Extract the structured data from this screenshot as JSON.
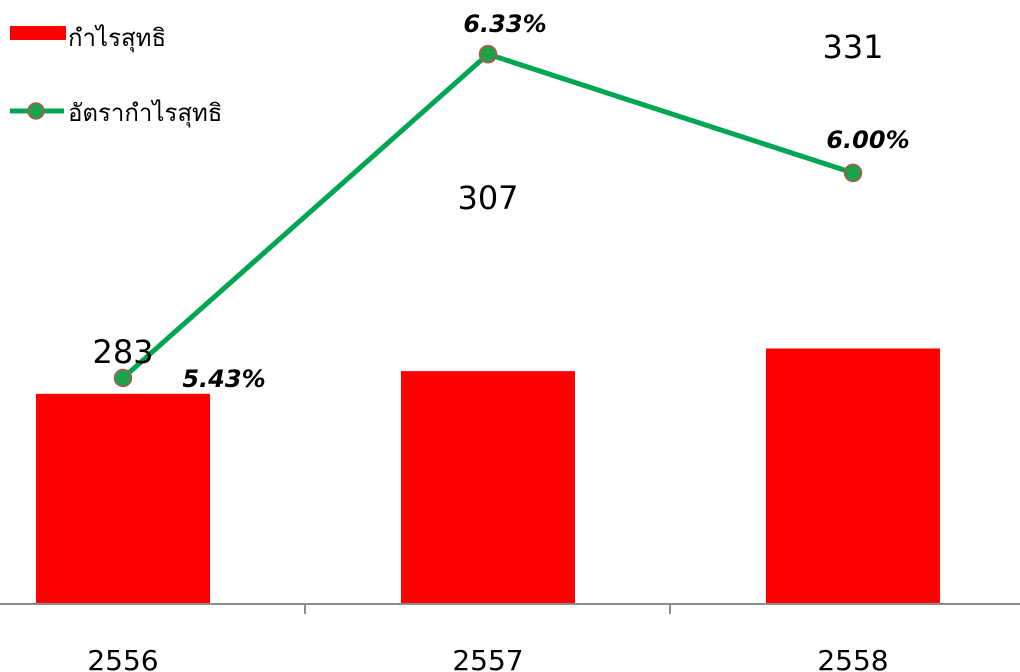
{
  "chart_data": {
    "type": "bar",
    "categories": [
      "2556",
      "2557",
      "2558"
    ],
    "series": [
      {
        "name": "กำไรสุทธิ",
        "kind": "bar",
        "color": "#ff0000",
        "values": [
          283,
          307,
          331
        ],
        "labels": [
          "283",
          "307",
          "331"
        ]
      },
      {
        "name": "อัตรากำไรสุทธิ",
        "kind": "line",
        "color": "#00a651",
        "marker_color": "#1aa34a",
        "marker_edge": "#c0504d",
        "values": [
          5.43,
          6.33,
          6.0
        ],
        "labels": [
          "5.43%",
          "6.33%",
          "6.00%"
        ]
      }
    ],
    "xlabel": "",
    "ylabel": "",
    "legend_position": "top-left",
    "grid": false
  }
}
